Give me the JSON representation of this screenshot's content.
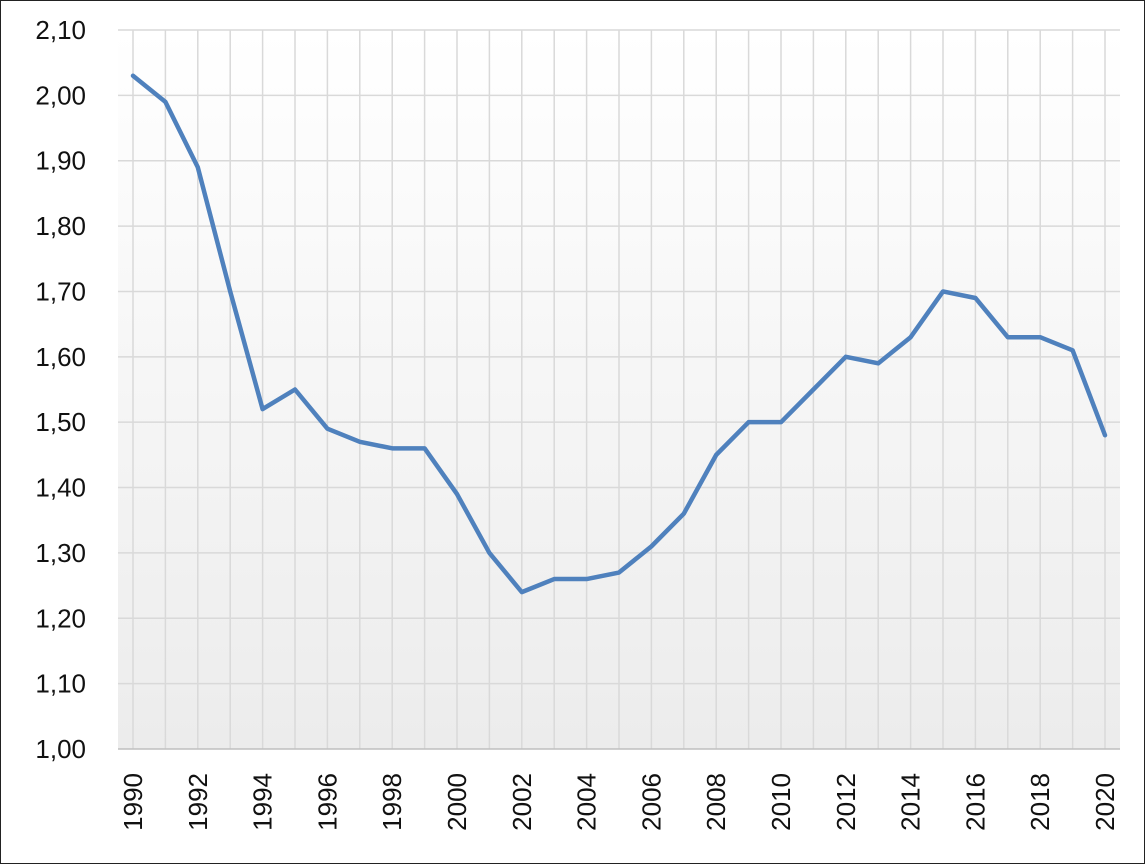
{
  "chart_data": {
    "type": "line",
    "title": "",
    "xlabel": "",
    "ylabel": "",
    "x": [
      1990,
      1991,
      1992,
      1993,
      1994,
      1995,
      1996,
      1997,
      1998,
      1999,
      2000,
      2001,
      2002,
      2003,
      2004,
      2005,
      2006,
      2007,
      2008,
      2009,
      2010,
      2011,
      2012,
      2013,
      2014,
      2015,
      2016,
      2017,
      2018,
      2019,
      2020
    ],
    "series": [
      {
        "values": [
          2.03,
          1.99,
          1.89,
          1.7,
          1.52,
          1.55,
          1.49,
          1.47,
          1.46,
          1.46,
          1.39,
          1.3,
          1.24,
          1.26,
          1.26,
          1.27,
          1.31,
          1.36,
          1.45,
          1.5,
          1.5,
          1.55,
          1.6,
          1.59,
          1.63,
          1.7,
          1.69,
          1.63,
          1.63,
          1.61,
          1.48
        ],
        "color": "#4f81bd"
      }
    ],
    "ylim": [
      1.0,
      2.1
    ],
    "y_ticks": [
      "1,00",
      "1,10",
      "1,20",
      "1,30",
      "1,40",
      "1,50",
      "1,60",
      "1,70",
      "1,80",
      "1,90",
      "2,00",
      "2,10"
    ],
    "x_ticks": [
      "1990",
      "1992",
      "1994",
      "1996",
      "1998",
      "2000",
      "2002",
      "2004",
      "2006",
      "2008",
      "2010",
      "2012",
      "2014",
      "2016",
      "2018",
      "2020"
    ],
    "grid": true,
    "legend": "none"
  }
}
